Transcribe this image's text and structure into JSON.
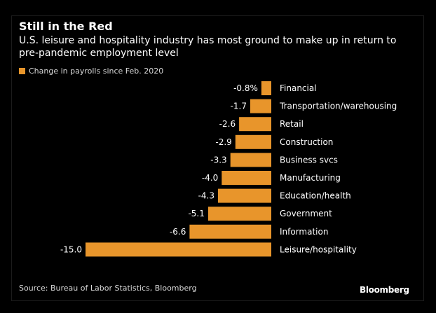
{
  "colors": {
    "background": "#000000",
    "bar": "#e8952b",
    "text": "#ffffff",
    "muted_text": "#d8d8d8"
  },
  "chart_data": {
    "type": "bar",
    "orientation": "horizontal",
    "title": "Still in the Red",
    "subtitle": "U.S. leisure and hospitality industry has most ground to make up in return to pre-pandemic employment level",
    "xlabel": "",
    "ylabel": "",
    "legend": {
      "placement": "top-left",
      "entries": [
        "Change in payrolls since Feb. 2020"
      ]
    },
    "categories": [
      "Financial",
      "Transportation/warehousing",
      "Retail",
      "Construction",
      "Business svcs",
      "Manufacturing",
      "Education/health",
      "Government",
      "Information",
      "Leisure/hospitality"
    ],
    "series": [
      {
        "name": "Change in payrolls since Feb. 2020",
        "values": [
          -0.8,
          -1.7,
          -2.6,
          -2.9,
          -3.3,
          -4.0,
          -4.3,
          -5.1,
          -6.6,
          -15.0
        ]
      }
    ],
    "value_labels": [
      "-0.8%",
      "-1.7",
      "-2.6",
      "-2.9",
      "-3.3",
      "-4.0",
      "-4.3",
      "-5.1",
      "-6.6",
      "-15.0"
    ],
    "xlim": [
      -15.0,
      0
    ],
    "grid": false
  },
  "footer": {
    "source": "Source: Bureau of Labor Statistics, Bloomberg",
    "brand": "Bloomberg"
  }
}
